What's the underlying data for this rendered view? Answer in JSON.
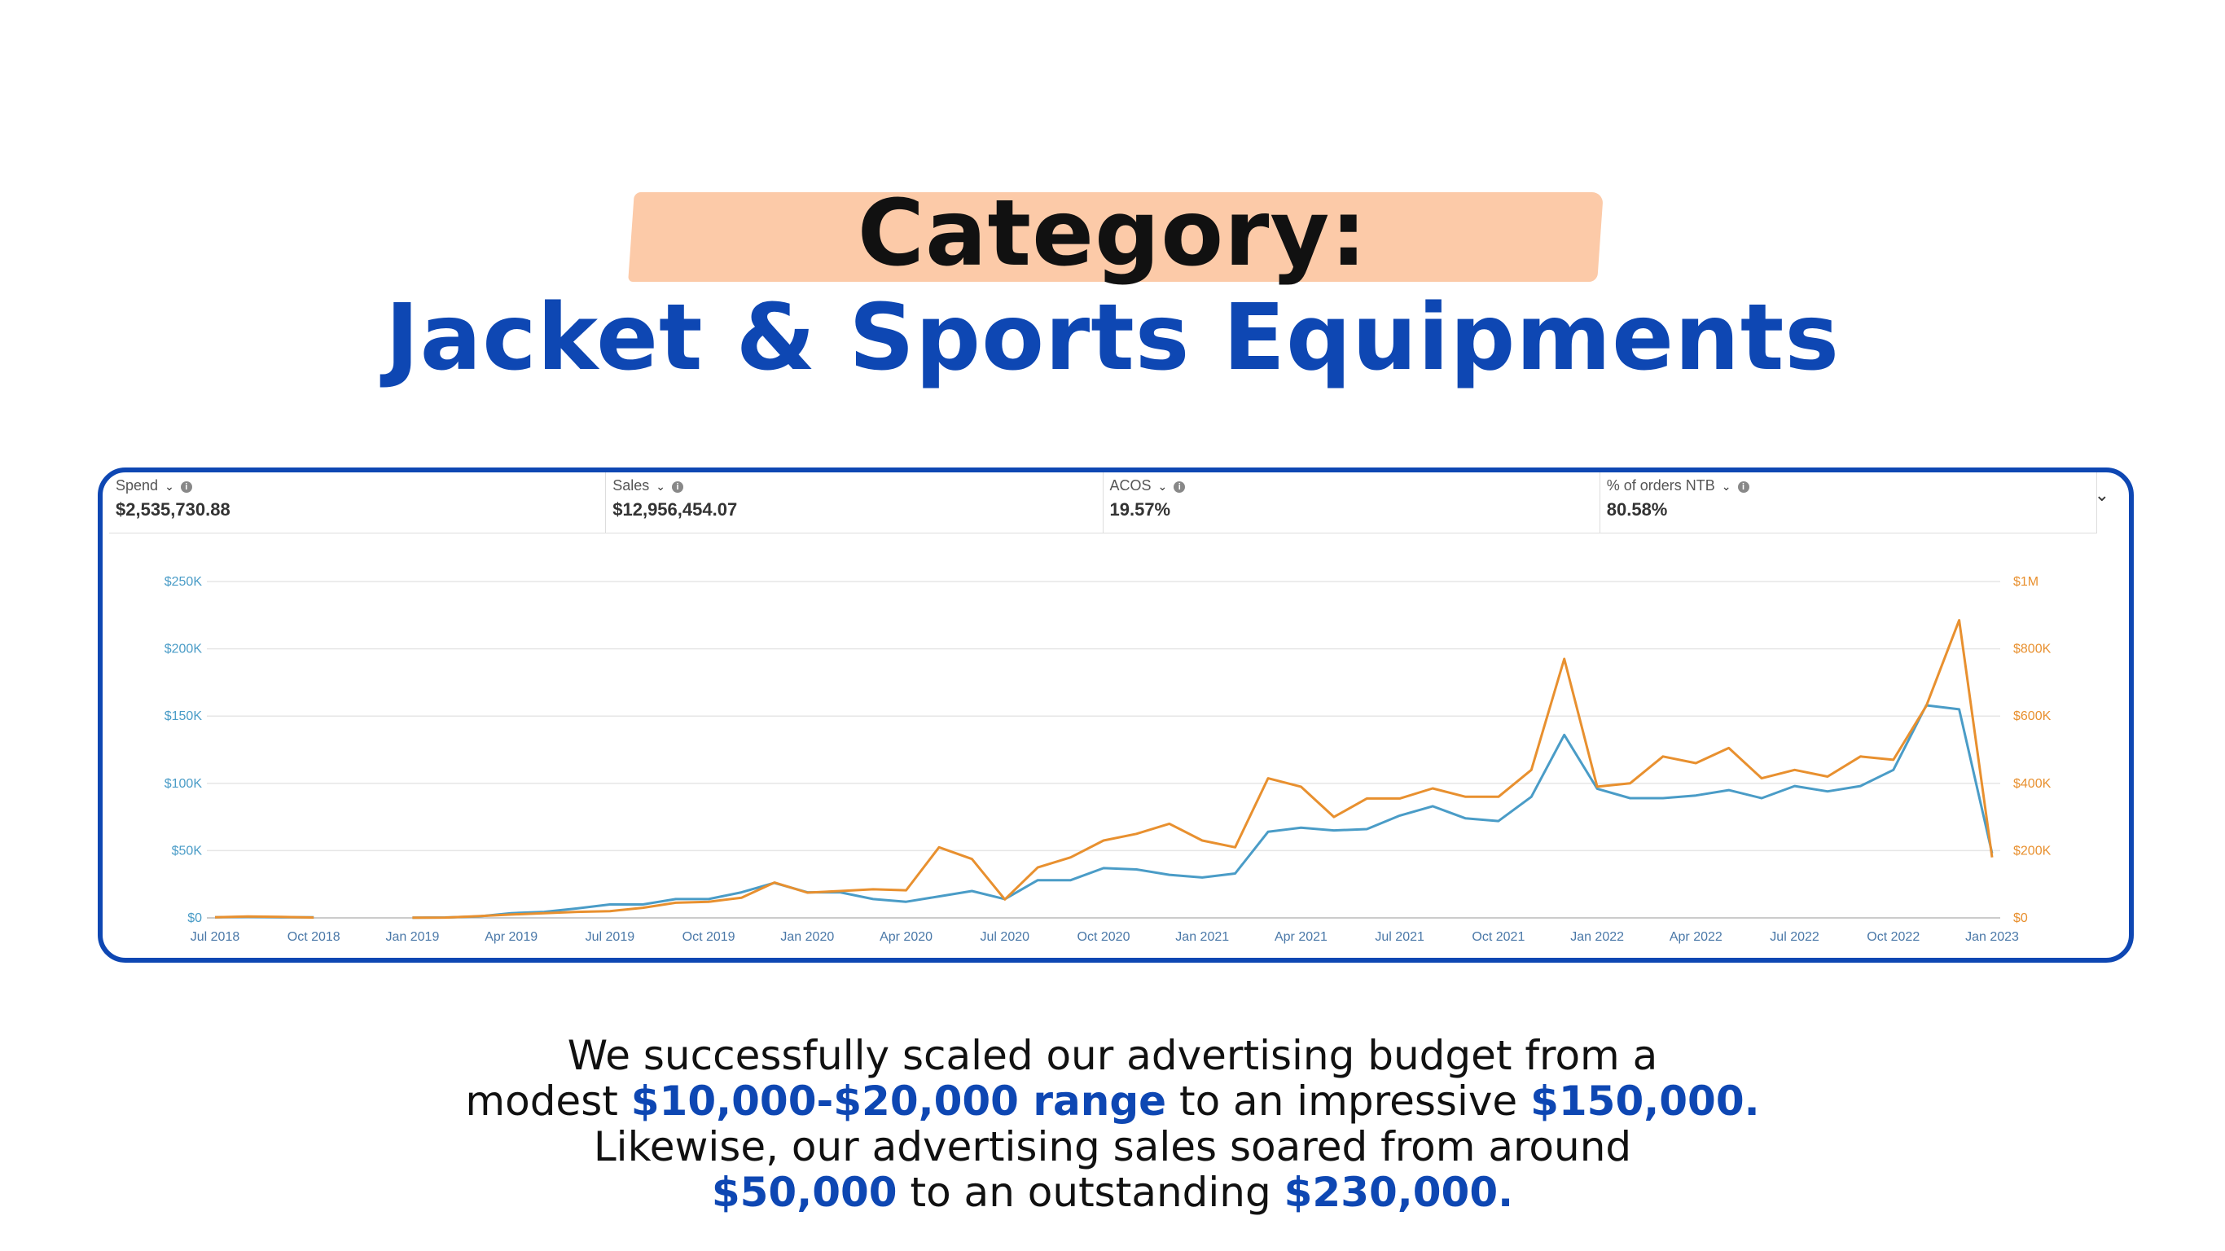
{
  "heading": {
    "line1": "Category:",
    "line2": "Jacket & Sports Equipments"
  },
  "metrics": [
    {
      "label": "Spend",
      "value": "$2,535,730.88"
    },
    {
      "label": "Sales",
      "value": "$12,956,454.07"
    },
    {
      "label": "ACOS",
      "value": "19.57%"
    },
    {
      "label": "% of orders NTB",
      "value": "80.58%"
    }
  ],
  "icons": {
    "dropdown": "chevron-down-icon",
    "info": "info-icon"
  },
  "colors": {
    "spend": "#4a9cc7",
    "sales": "#e8902f",
    "accent": "#0e47b3",
    "highlight": "#fccaa8"
  },
  "chart_data": {
    "type": "line",
    "x": [
      "Jul 2018",
      "Aug 2018",
      "Sep 2018",
      "Oct 2018",
      "Nov 2018",
      "Dec 2018",
      "Jan 2019",
      "Feb 2019",
      "Mar 2019",
      "Apr 2019",
      "May 2019",
      "Jun 2019",
      "Jul 2019",
      "Aug 2019",
      "Sep 2019",
      "Oct 2019",
      "Nov 2019",
      "Dec 2019",
      "Jan 2020",
      "Feb 2020",
      "Mar 2020",
      "Apr 2020",
      "May 2020",
      "Jun 2020",
      "Jul 2020",
      "Aug 2020",
      "Sep 2020",
      "Oct 2020",
      "Nov 2020",
      "Dec 2020",
      "Jan 2021",
      "Feb 2021",
      "Mar 2021",
      "Apr 2021",
      "May 2021",
      "Jun 2021",
      "Jul 2021",
      "Aug 2021",
      "Sep 2021",
      "Oct 2021",
      "Nov 2021",
      "Dec 2021",
      "Jan 2022",
      "Feb 2022",
      "Mar 2022",
      "Apr 2022",
      "May 2022",
      "Jun 2022",
      "Jul 2022",
      "Aug 2022",
      "Sep 2022",
      "Oct 2022",
      "Nov 2022",
      "Dec 2022",
      "Jan 2023"
    ],
    "x_ticks": [
      "Jul 2018",
      "Oct 2018",
      "Jan 2019",
      "Apr 2019",
      "Jul 2019",
      "Oct 2019",
      "Jan 2020",
      "Apr 2020",
      "Jul 2020",
      "Oct 2020",
      "Jan 2021",
      "Apr 2021",
      "Jul 2021",
      "Oct 2021",
      "Jan 2022",
      "Apr 2022",
      "Jul 2022",
      "Oct 2022",
      "Jan 2023"
    ],
    "series": [
      {
        "name": "Spend",
        "axis": "left",
        "values": [
          500,
          700,
          500,
          400,
          null,
          null,
          100,
          300,
          1000,
          3500,
          4500,
          7000,
          10000,
          10000,
          14000,
          14000,
          19000,
          26000,
          19000,
          19000,
          14000,
          12000,
          16000,
          20000,
          14000,
          28000,
          28000,
          37000,
          36000,
          32000,
          30000,
          33000,
          64000,
          67000,
          65000,
          66000,
          76000,
          83000,
          74000,
          72000,
          90000,
          136000,
          96000,
          89000,
          89000,
          91000,
          95000,
          89000,
          98000,
          94000,
          98000,
          110000,
          158000,
          155000,
          48000
        ]
      },
      {
        "name": "Sales",
        "axis": "right",
        "values": [
          2000,
          4000,
          3000,
          1000,
          null,
          null,
          500,
          1000,
          5000,
          10000,
          14000,
          18000,
          20000,
          30000,
          45000,
          48000,
          60000,
          105000,
          75000,
          80000,
          85000,
          82000,
          210000,
          175000,
          55000,
          150000,
          180000,
          230000,
          250000,
          280000,
          230000,
          210000,
          415000,
          390000,
          300000,
          355000,
          355000,
          385000,
          360000,
          360000,
          440000,
          770000,
          390000,
          400000,
          480000,
          460000,
          505000,
          415000,
          440000,
          420000,
          480000,
          470000,
          630000,
          885000,
          180000
        ]
      }
    ],
    "y_left_ticks": [
      "$0",
      "$50K",
      "$100K",
      "$150K",
      "$200K",
      "$250K"
    ],
    "y_right_ticks": [
      "$0",
      "$200K",
      "$400K",
      "$600K",
      "$800K",
      "$1M"
    ],
    "ylim_left": [
      0,
      250000
    ],
    "ylim_right": [
      0,
      1000000
    ],
    "grid": "horizontal"
  },
  "body": {
    "line1": "We successfully scaled our advertising budget from a",
    "line2_a": "modest ",
    "line2_b": "$10,000-$20,000 range",
    "line2_c": " to an impressive ",
    "line2_d": "$150,000.",
    "line3": "Likewise, our advertising sales soared from around",
    "line4_a": "$50,000",
    "line4_b": " to an outstanding ",
    "line4_c": "$230,000."
  }
}
